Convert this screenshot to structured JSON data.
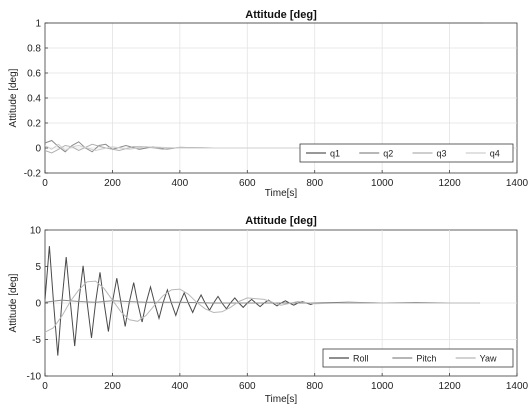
{
  "chart_data": [
    {
      "type": "line",
      "title": "Attitude [deg]",
      "xlabel": "Time[s]",
      "ylabel": "Attitude [deg]",
      "xlim": [
        0,
        1400
      ],
      "ylim": [
        -0.2,
        1
      ],
      "xticks": [
        0,
        200,
        400,
        600,
        800,
        1000,
        1200,
        1400
      ],
      "yticks": [
        -0.2,
        0,
        0.2,
        0.4,
        0.6,
        0.8,
        1
      ],
      "ytick_labels": [
        "-0.2",
        "0",
        "0.2",
        "0.4",
        "0.6",
        "0.8",
        "1"
      ],
      "grid": true,
      "legend_position": "bottom-right",
      "series": [
        {
          "name": "q1",
          "color": "#5a5a5a",
          "x": [
            0,
            100,
            200,
            300,
            400,
            500,
            600,
            700,
            800,
            900,
            1000,
            1100,
            1200,
            1300
          ],
          "y": [
            1,
            1,
            1,
            1,
            1,
            1,
            1,
            1,
            1,
            1,
            1,
            1,
            1,
            1
          ]
        },
        {
          "name": "q2",
          "color": "#8c8c8c",
          "x": [
            0,
            20,
            40,
            60,
            80,
            100,
            120,
            140,
            160,
            180,
            200,
            240,
            280,
            320,
            360,
            400,
            500,
            600,
            700,
            800
          ],
          "y": [
            0.04,
            0.06,
            0.01,
            -0.03,
            0.02,
            0.05,
            0.0,
            -0.03,
            0.02,
            0.03,
            -0.01,
            0.02,
            -0.01,
            0.01,
            -0.01,
            0.005,
            0.0,
            0.0,
            0.0,
            0.0
          ]
        },
        {
          "name": "q3",
          "color": "#b0b0b0",
          "x": [
            0,
            20,
            40,
            60,
            80,
            100,
            140,
            180,
            220,
            260,
            300,
            350,
            400,
            500,
            600,
            700,
            800
          ],
          "y": [
            -0.02,
            -0.04,
            -0.01,
            0.02,
            0.01,
            -0.02,
            0.03,
            0.0,
            -0.02,
            0.01,
            0.01,
            -0.01,
            0.005,
            0.0,
            0.0,
            0.0,
            0.0
          ]
        },
        {
          "name": "q4",
          "color": "#cfcfcf",
          "x": [
            0,
            20,
            40,
            60,
            80,
            100,
            150,
            200,
            250,
            300,
            400,
            500,
            600,
            700,
            800
          ],
          "y": [
            0.02,
            -0.01,
            0.03,
            -0.02,
            0.01,
            0.02,
            -0.02,
            0.01,
            -0.01,
            0.01,
            0.0,
            0.0,
            0.0,
            0.0,
            0.0
          ]
        }
      ]
    },
    {
      "type": "line",
      "title": "Attitude [deg]",
      "xlabel": "Time[s]",
      "ylabel": "Attitude [deg]",
      "xlim": [
        0,
        1400
      ],
      "ylim": [
        -10,
        10
      ],
      "xticks": [
        0,
        200,
        400,
        600,
        800,
        1000,
        1200,
        1400
      ],
      "yticks": [
        -10,
        -5,
        0,
        5,
        10
      ],
      "ytick_labels": [
        "-10",
        "-5",
        "0",
        "5",
        "10"
      ],
      "grid": true,
      "legend_position": "bottom-right",
      "series": [
        {
          "name": "Roll",
          "color": "#4a4a4a",
          "x": [
            0,
            13,
            25,
            38,
            50,
            63,
            75,
            88,
            100,
            113,
            125,
            138,
            150,
            163,
            175,
            188,
            200,
            213,
            225,
            238,
            250,
            263,
            275,
            288,
            300,
            313,
            325,
            338,
            350,
            363,
            375,
            388,
            400,
            413,
            425,
            438,
            450,
            463,
            475,
            488,
            500,
            513,
            525,
            538,
            550,
            563,
            575,
            588,
            600,
            613,
            625,
            638,
            650,
            663,
            675,
            688,
            700,
            713,
            725,
            738,
            750,
            763,
            775,
            788,
            800,
            900,
            1000,
            1100,
            1200,
            1290
          ],
          "y": [
            0.5,
            7.8,
            0.3,
            -7.2,
            0.2,
            6.3,
            0.2,
            -5.9,
            0.1,
            5.1,
            0.1,
            -4.8,
            0.1,
            4.2,
            0.1,
            -3.9,
            0.1,
            3.4,
            0.1,
            -3.2,
            0.1,
            2.8,
            0.0,
            -2.6,
            0.0,
            2.2,
            0.0,
            -2.1,
            0.0,
            1.8,
            0.0,
            -1.7,
            0.0,
            1.4,
            0.0,
            -1.3,
            0.0,
            1.1,
            0.0,
            -1.0,
            0.0,
            0.9,
            0.0,
            -0.8,
            0.0,
            0.7,
            0.0,
            -0.6,
            0.0,
            0.5,
            0.0,
            -0.5,
            0.0,
            0.4,
            0.0,
            -0.4,
            0.0,
            0.3,
            0.0,
            -0.3,
            0.0,
            0.2,
            0.0,
            -0.2,
            0.0,
            0.1,
            0.0,
            0.05,
            0.0,
            0.0
          ]
        },
        {
          "name": "Pitch",
          "color": "#8a8a8a",
          "x": [
            0,
            50,
            100,
            150,
            200,
            300,
            400,
            500,
            600,
            700,
            800,
            1000,
            1200,
            1290
          ],
          "y": [
            0.1,
            0.4,
            0.2,
            0.1,
            0.3,
            0.1,
            0.1,
            0.0,
            0.0,
            0.0,
            0.0,
            0.0,
            0.0,
            0.0
          ]
        },
        {
          "name": "Yaw",
          "color": "#b8b8b8",
          "x": [
            0,
            25,
            50,
            75,
            100,
            125,
            150,
            175,
            200,
            225,
            250,
            275,
            300,
            325,
            350,
            375,
            400,
            425,
            450,
            475,
            500,
            525,
            550,
            575,
            600,
            650,
            700,
            750,
            800,
            900,
            1000,
            1100,
            1200,
            1290
          ],
          "y": [
            -4.0,
            -3.4,
            -1.8,
            0.2,
            1.8,
            2.9,
            3.0,
            2.0,
            0.4,
            -1.2,
            -2.3,
            -2.5,
            -1.7,
            -0.3,
            1.0,
            1.8,
            1.9,
            1.2,
            0.1,
            -0.8,
            -1.3,
            -1.2,
            -0.6,
            0.2,
            0.7,
            0.5,
            -0.3,
            0.2,
            -0.1,
            0.05,
            0.0,
            0.0,
            0.0,
            0.0
          ]
        }
      ]
    }
  ]
}
